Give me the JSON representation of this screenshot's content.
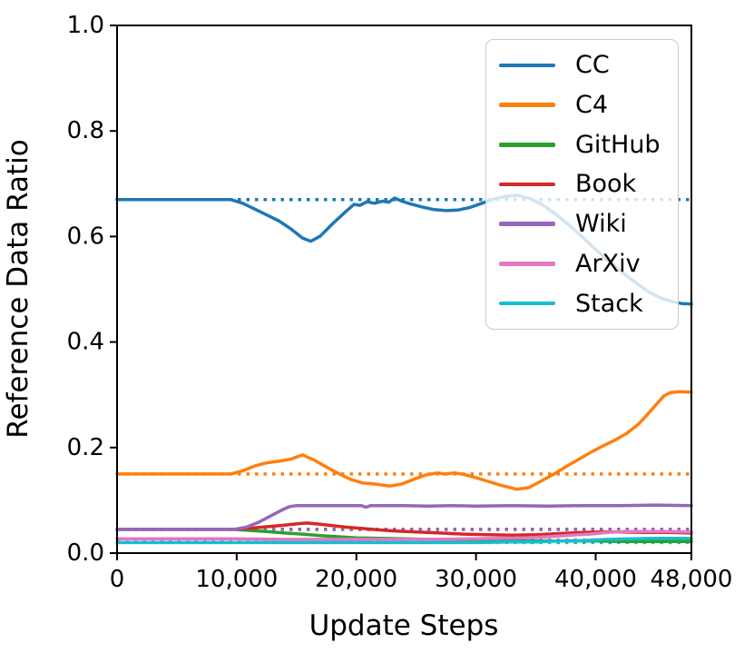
{
  "chart_data": {
    "type": "line",
    "title": "",
    "xlabel": "Update Steps",
    "ylabel": "Reference Data Ratio",
    "xlim": [
      0,
      48000
    ],
    "ylim": [
      0,
      1
    ],
    "grid": false,
    "legend_position": "upper right",
    "reference_line_style": "dotted",
    "xticks": {
      "values": [
        0,
        10000,
        20000,
        30000,
        40000,
        48000
      ],
      "labels": [
        "0",
        "10,000",
        "20,000",
        "30,000",
        "40,000",
        "48,000"
      ]
    },
    "yticks": {
      "values": [
        0,
        0.2,
        0.4,
        0.6,
        0.8,
        1.0
      ],
      "labels": [
        "0.0",
        "0.2",
        "0.4",
        "0.6",
        "0.8",
        "1.0"
      ]
    },
    "series": [
      {
        "name": "CC",
        "color": "#1f77b4",
        "reference_value": 0.67,
        "points": [
          [
            0,
            0.67
          ],
          [
            9500,
            0.67
          ],
          [
            10500,
            0.663
          ],
          [
            11500,
            0.652
          ],
          [
            12500,
            0.641
          ],
          [
            13500,
            0.63
          ],
          [
            14500,
            0.615
          ],
          [
            15500,
            0.597
          ],
          [
            16200,
            0.591
          ],
          [
            17000,
            0.601
          ],
          [
            18000,
            0.624
          ],
          [
            19000,
            0.645
          ],
          [
            19800,
            0.661
          ],
          [
            20300,
            0.659
          ],
          [
            20900,
            0.666
          ],
          [
            21500,
            0.663
          ],
          [
            22200,
            0.667
          ],
          [
            22700,
            0.665
          ],
          [
            23200,
            0.673
          ],
          [
            23800,
            0.667
          ],
          [
            24500,
            0.662
          ],
          [
            25500,
            0.656
          ],
          [
            26500,
            0.651
          ],
          [
            27500,
            0.649
          ],
          [
            28500,
            0.65
          ],
          [
            29500,
            0.655
          ],
          [
            30500,
            0.663
          ],
          [
            31500,
            0.671
          ],
          [
            32500,
            0.676
          ],
          [
            33500,
            0.678
          ],
          [
            34500,
            0.672
          ],
          [
            35500,
            0.661
          ],
          [
            36500,
            0.645
          ],
          [
            37500,
            0.627
          ],
          [
            38500,
            0.607
          ],
          [
            39500,
            0.586
          ],
          [
            40500,
            0.565
          ],
          [
            41500,
            0.545
          ],
          [
            42500,
            0.527
          ],
          [
            43500,
            0.51
          ],
          [
            44500,
            0.494
          ],
          [
            45500,
            0.483
          ],
          [
            46500,
            0.476
          ],
          [
            47200,
            0.473
          ],
          [
            48000,
            0.472
          ]
        ]
      },
      {
        "name": "C4",
        "color": "#ff7f0e",
        "reference_value": 0.15,
        "points": [
          [
            0,
            0.15
          ],
          [
            9500,
            0.15
          ],
          [
            10500,
            0.156
          ],
          [
            11500,
            0.165
          ],
          [
            12500,
            0.171
          ],
          [
            13500,
            0.174
          ],
          [
            14500,
            0.178
          ],
          [
            15500,
            0.186
          ],
          [
            16500,
            0.176
          ],
          [
            17500,
            0.163
          ],
          [
            18500,
            0.151
          ],
          [
            19500,
            0.14
          ],
          [
            20500,
            0.133
          ],
          [
            21500,
            0.131
          ],
          [
            22800,
            0.127
          ],
          [
            23800,
            0.131
          ],
          [
            24800,
            0.14
          ],
          [
            25800,
            0.148
          ],
          [
            26800,
            0.152
          ],
          [
            27400,
            0.15
          ],
          [
            28200,
            0.152
          ],
          [
            29000,
            0.149
          ],
          [
            30000,
            0.143
          ],
          [
            31000,
            0.136
          ],
          [
            32000,
            0.129
          ],
          [
            33400,
            0.121
          ],
          [
            34400,
            0.124
          ],
          [
            35400,
            0.136
          ],
          [
            36600,
            0.151
          ],
          [
            37600,
            0.165
          ],
          [
            38600,
            0.178
          ],
          [
            39600,
            0.191
          ],
          [
            40600,
            0.203
          ],
          [
            41600,
            0.214
          ],
          [
            42600,
            0.227
          ],
          [
            43600,
            0.245
          ],
          [
            44300,
            0.262
          ],
          [
            45000,
            0.28
          ],
          [
            45700,
            0.298
          ],
          [
            46200,
            0.304
          ],
          [
            47000,
            0.306
          ],
          [
            48000,
            0.305
          ]
        ]
      },
      {
        "name": "GitHub",
        "color": "#2ca02c",
        "reference_value": 0.045,
        "points": [
          [
            0,
            0.045
          ],
          [
            9800,
            0.045
          ],
          [
            11000,
            0.043
          ],
          [
            12500,
            0.041
          ],
          [
            14000,
            0.038
          ],
          [
            15500,
            0.036
          ],
          [
            17000,
            0.033
          ],
          [
            18500,
            0.031
          ],
          [
            20000,
            0.029
          ],
          [
            22000,
            0.028
          ],
          [
            24000,
            0.027
          ],
          [
            26000,
            0.026
          ],
          [
            28000,
            0.025
          ],
          [
            30000,
            0.024
          ],
          [
            32000,
            0.024
          ],
          [
            34000,
            0.023
          ],
          [
            36000,
            0.023
          ],
          [
            38000,
            0.023
          ],
          [
            40000,
            0.023
          ],
          [
            42000,
            0.022
          ],
          [
            44000,
            0.022
          ],
          [
            46000,
            0.022
          ],
          [
            48000,
            0.022
          ]
        ]
      },
      {
        "name": "Book",
        "color": "#d62728",
        "reference_value": 0.045,
        "points": [
          [
            0,
            0.045
          ],
          [
            9800,
            0.045
          ],
          [
            11000,
            0.047
          ],
          [
            12500,
            0.05
          ],
          [
            14000,
            0.053
          ],
          [
            15200,
            0.056
          ],
          [
            15900,
            0.057
          ],
          [
            16800,
            0.055
          ],
          [
            18000,
            0.052
          ],
          [
            19200,
            0.049
          ],
          [
            20400,
            0.047
          ],
          [
            21800,
            0.044
          ],
          [
            23200,
            0.042
          ],
          [
            25000,
            0.04
          ],
          [
            27000,
            0.038
          ],
          [
            29000,
            0.036
          ],
          [
            31000,
            0.035
          ],
          [
            33000,
            0.034
          ],
          [
            35000,
            0.035
          ],
          [
            37000,
            0.037
          ],
          [
            39000,
            0.039
          ],
          [
            40500,
            0.04
          ],
          [
            42000,
            0.04
          ],
          [
            44000,
            0.039
          ],
          [
            46000,
            0.039
          ],
          [
            48000,
            0.038
          ]
        ]
      },
      {
        "name": "Wiki",
        "color": "#9467bd",
        "reference_value": 0.045,
        "points": [
          [
            0,
            0.045
          ],
          [
            9800,
            0.045
          ],
          [
            10800,
            0.049
          ],
          [
            11800,
            0.058
          ],
          [
            12800,
            0.07
          ],
          [
            13800,
            0.082
          ],
          [
            14400,
            0.088
          ],
          [
            15000,
            0.09
          ],
          [
            17000,
            0.09
          ],
          [
            19000,
            0.09
          ],
          [
            20400,
            0.09
          ],
          [
            20800,
            0.087
          ],
          [
            21200,
            0.09
          ],
          [
            24000,
            0.09
          ],
          [
            26000,
            0.089
          ],
          [
            28000,
            0.09
          ],
          [
            30000,
            0.089
          ],
          [
            33000,
            0.09
          ],
          [
            36000,
            0.089
          ],
          [
            39000,
            0.09
          ],
          [
            42000,
            0.09
          ],
          [
            45000,
            0.091
          ],
          [
            48000,
            0.09
          ]
        ]
      },
      {
        "name": "ArXiv",
        "color": "#e377c2",
        "reference_value": 0.025,
        "points": [
          [
            0,
            0.027
          ],
          [
            10000,
            0.027
          ],
          [
            14000,
            0.026
          ],
          [
            18000,
            0.026
          ],
          [
            22000,
            0.026
          ],
          [
            26000,
            0.026
          ],
          [
            30000,
            0.027
          ],
          [
            32000,
            0.028
          ],
          [
            34000,
            0.029
          ],
          [
            36000,
            0.031
          ],
          [
            38000,
            0.034
          ],
          [
            39500,
            0.036
          ],
          [
            41000,
            0.039
          ],
          [
            42500,
            0.041
          ],
          [
            44000,
            0.041
          ],
          [
            46000,
            0.041
          ],
          [
            48000,
            0.04
          ]
        ]
      },
      {
        "name": "Stack",
        "color": "#17becf",
        "reference_value": 0.02,
        "points": [
          [
            0,
            0.02
          ],
          [
            10000,
            0.02
          ],
          [
            15000,
            0.02
          ],
          [
            20000,
            0.02
          ],
          [
            25000,
            0.02
          ],
          [
            30000,
            0.02
          ],
          [
            33000,
            0.021
          ],
          [
            35000,
            0.021
          ],
          [
            37000,
            0.023
          ],
          [
            39000,
            0.024
          ],
          [
            41000,
            0.026
          ],
          [
            43000,
            0.027
          ],
          [
            45000,
            0.028
          ],
          [
            48000,
            0.028
          ]
        ]
      }
    ]
  },
  "legend": {
    "items": [
      "CC",
      "C4",
      "GitHub",
      "Book",
      "Wiki",
      "ArXiv",
      "Stack"
    ]
  }
}
